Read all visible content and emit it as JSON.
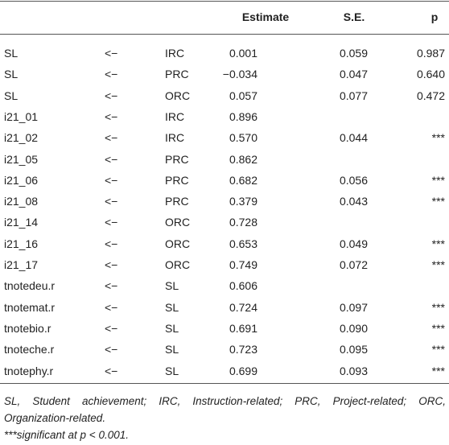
{
  "table": {
    "header": [
      null,
      null,
      null,
      "Estimate",
      "S.E.",
      "p"
    ],
    "rows": [
      [
        "SL",
        "<−",
        "IRC",
        "0.001",
        "0.059",
        "0.987"
      ],
      [
        "SL",
        "<−",
        "PRC",
        "−0.034",
        "0.047",
        "0.640"
      ],
      [
        "SL",
        "<−",
        "ORC",
        "0.057",
        "0.077",
        "0.472"
      ],
      [
        "i21_01",
        "<−",
        "IRC",
        "0.896",
        null,
        null
      ],
      [
        "i21_02",
        "<−",
        "IRC",
        "0.570",
        "0.044",
        "***"
      ],
      [
        "i21_05",
        "<−",
        "PRC",
        "0.862",
        null,
        null
      ],
      [
        "i21_06",
        "<−",
        "PRC",
        "0.682",
        "0.056",
        "***"
      ],
      [
        "i21_08",
        "<−",
        "PRC",
        "0.379",
        "0.043",
        "***"
      ],
      [
        "i21_14",
        "<−",
        "ORC",
        "0.728",
        null,
        null
      ],
      [
        "i21_16",
        "<−",
        "ORC",
        "0.653",
        "0.049",
        "***"
      ],
      [
        "i21_17",
        "<−",
        "ORC",
        "0.749",
        "0.072",
        "***"
      ],
      [
        "tnotedeu.r",
        "<−",
        "SL",
        "0.606",
        null,
        null
      ],
      [
        "tnotemat.r",
        "<−",
        "SL",
        "0.724",
        "0.097",
        "***"
      ],
      [
        "tnotebio.r",
        "<−",
        "SL",
        "0.691",
        "0.090",
        "***"
      ],
      [
        "tnoteche.r",
        "<−",
        "SL",
        "0.723",
        "0.095",
        "***"
      ],
      [
        "tnotephy.r",
        "<−",
        "SL",
        "0.699",
        "0.093",
        "***"
      ]
    ]
  },
  "footnotes": [
    "SL, Student achievement; IRC, Instruction-related; PRC, Project-related; ORC, Organization-related.",
    "***significant at p < 0.001."
  ]
}
